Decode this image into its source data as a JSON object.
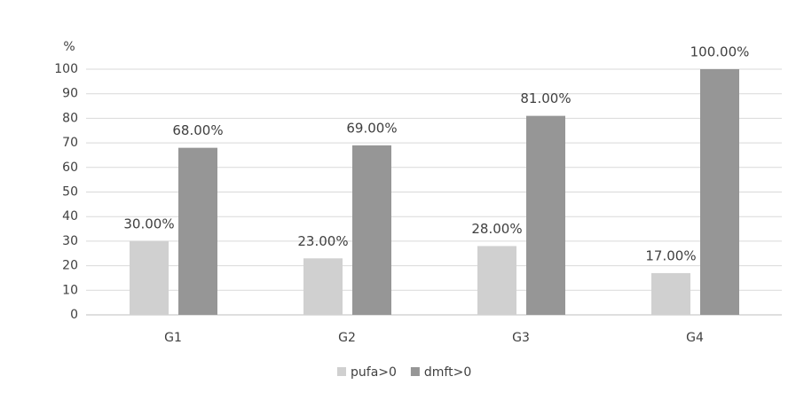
{
  "chart_data": {
    "type": "bar",
    "ylabel": "%",
    "categories": [
      "G1",
      "G2",
      "G3",
      "G4"
    ],
    "series": [
      {
        "name": "pufa>0",
        "color": "#d0d0d0",
        "values": [
          30,
          23,
          28,
          17
        ],
        "value_labels": [
          "30.00%",
          "23.00%",
          "28.00%",
          "17.00%"
        ]
      },
      {
        "name": "dmft>0",
        "color": "#969696",
        "values": [
          68,
          69,
          81,
          100
        ],
        "value_labels": [
          "68.00%",
          "69.00%",
          "81.00%",
          "100.00%"
        ]
      }
    ],
    "ylim": [
      0,
      100
    ],
    "yticks": [
      0,
      10,
      20,
      30,
      40,
      50,
      60,
      70,
      80,
      90,
      100
    ],
    "grid": true,
    "legend": "bottom"
  }
}
